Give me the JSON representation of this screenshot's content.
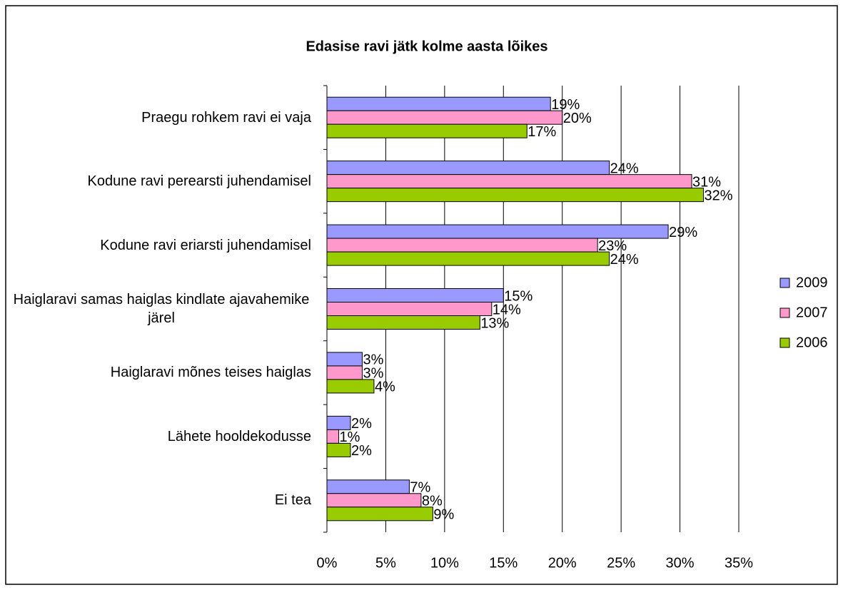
{
  "chart_data": {
    "type": "bar",
    "orientation": "horizontal",
    "title": "Edasise ravi jätk kolme aasta lõikes",
    "categories": [
      "Praegu rohkem ravi ei vaja",
      "Kodune ravi perearsti juhendamisel",
      "Kodune ravi eriarsti juhendamisel",
      "Haiglaravi samas haiglas kindlate ajavahemike järel",
      "Haiglaravi mõnes teises haiglas",
      "Lähete hooldekodusse",
      "Ei tea"
    ],
    "series": [
      {
        "name": "2009",
        "color": "#9999ff",
        "values": [
          19,
          24,
          29,
          15,
          3,
          2,
          7
        ],
        "value_labels": [
          "19%",
          "24%",
          "29%",
          "15%",
          "3%",
          "2%",
          "7%"
        ]
      },
      {
        "name": "2007",
        "color": "#ff99cc",
        "values": [
          20,
          31,
          23,
          14,
          3,
          1,
          8
        ],
        "value_labels": [
          "20%",
          "31%",
          "23%",
          "14%",
          "3%",
          "1%",
          "8%"
        ]
      },
      {
        "name": "2006",
        "color": "#99cc00",
        "values": [
          17,
          32,
          24,
          13,
          4,
          2,
          9
        ],
        "value_labels": [
          "17%",
          "32%",
          "24%",
          "13%",
          "4%",
          "2%",
          "9%"
        ]
      }
    ],
    "xlim": [
      0,
      35
    ],
    "xticks": [
      {
        "value": 0,
        "label": "0%"
      },
      {
        "value": 5,
        "label": "5%"
      },
      {
        "value": 10,
        "label": "10%"
      },
      {
        "value": 15,
        "label": "15%"
      },
      {
        "value": 20,
        "label": "20%"
      },
      {
        "value": 25,
        "label": "25%"
      },
      {
        "value": 30,
        "label": "30%"
      },
      {
        "value": 35,
        "label": "35%"
      }
    ],
    "grid": true,
    "legend": "right"
  }
}
